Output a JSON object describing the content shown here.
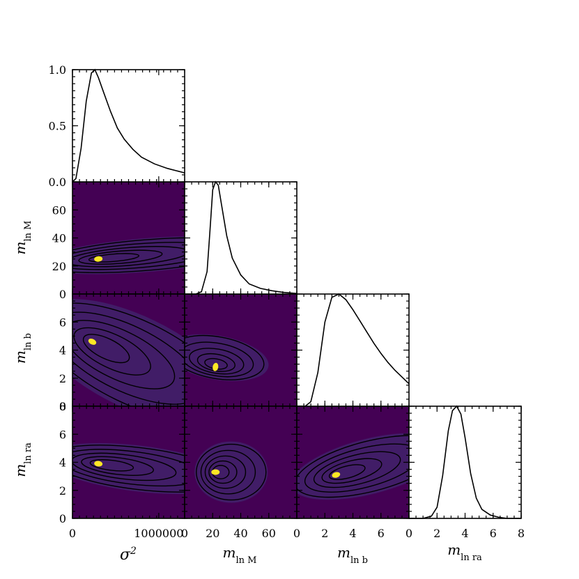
{
  "figure_type": "corner plot",
  "colors": {
    "background": "#440154",
    "ring1": "#3b528b",
    "ring2": "#21918c",
    "ring3": "#5ec962",
    "peak": "#fde725",
    "line": "#000000"
  },
  "chart_data": {
    "type": "corner",
    "colormap": "viridis",
    "params": [
      {
        "key": "sigma2",
        "label_base": "σ",
        "label_sup": "2",
        "label_sub": "",
        "range": [
          0,
          1300000
        ],
        "ticks": [
          0,
          1000000
        ],
        "tick_labels": [
          "0",
          "1000000"
        ]
      },
      {
        "key": "mlnM",
        "label_base": "m",
        "label_sup": "",
        "label_sub": "ln M",
        "range": [
          0,
          80
        ],
        "ticks": [
          0,
          20,
          40,
          60
        ],
        "tick_labels": [
          "0",
          "20",
          "40",
          "60"
        ]
      },
      {
        "key": "mlnb",
        "label_base": "m",
        "label_sup": "",
        "label_sub": "ln b",
        "range": [
          0,
          8
        ],
        "ticks": [
          0,
          2,
          4,
          6
        ],
        "tick_labels": [
          "0",
          "2",
          "4",
          "6"
        ]
      },
      {
        "key": "mlnra",
        "label_base": "m",
        "label_sup": "",
        "label_sub": "ln ra",
        "range": [
          0,
          8
        ],
        "ticks": [
          0,
          2,
          4,
          6,
          8
        ],
        "tick_labels": [
          "0",
          "2",
          "4",
          "6",
          "8"
        ]
      }
    ],
    "diag_y_ticks": [
      0,
      0.5,
      1.0
    ],
    "diag_y_tick_labels": [
      "0.0",
      "0.5",
      "1.0"
    ],
    "marginals": [
      {
        "param": "sigma2",
        "x": [
          0,
          40000,
          100000,
          160000,
          220000,
          260000,
          300000,
          360000,
          440000,
          520000,
          600000,
          700000,
          800000,
          950000,
          1100000,
          1300000
        ],
        "y": [
          0.0,
          0.03,
          0.3,
          0.72,
          0.97,
          1.0,
          0.93,
          0.8,
          0.63,
          0.48,
          0.38,
          0.29,
          0.22,
          0.16,
          0.12,
          0.08
        ]
      },
      {
        "param": "mlnM",
        "x": [
          0,
          8,
          12,
          16,
          18,
          20,
          22,
          24,
          26,
          30,
          34,
          40,
          46,
          54,
          62,
          70,
          80
        ],
        "y": [
          0.0,
          0.0,
          0.02,
          0.2,
          0.55,
          0.93,
          1.0,
          0.97,
          0.82,
          0.52,
          0.32,
          0.17,
          0.09,
          0.05,
          0.03,
          0.015,
          0.005
        ]
      },
      {
        "param": "mlnb",
        "x": [
          0,
          0.6,
          1.0,
          1.5,
          2.0,
          2.5,
          3.0,
          3.5,
          4.0,
          4.5,
          5.0,
          5.5,
          6.0,
          6.5,
          7.0,
          7.5,
          8.0
        ],
        "y": [
          0.0,
          0.0,
          0.04,
          0.3,
          0.75,
          0.97,
          1.0,
          0.95,
          0.86,
          0.76,
          0.66,
          0.56,
          0.47,
          0.39,
          0.32,
          0.26,
          0.2
        ]
      },
      {
        "param": "mlnra",
        "x": [
          0,
          1.0,
          1.6,
          2.0,
          2.4,
          2.8,
          3.1,
          3.4,
          3.7,
          4.0,
          4.4,
          4.8,
          5.2,
          5.8,
          6.4,
          7.0,
          8.0
        ],
        "y": [
          0.0,
          0.0,
          0.02,
          0.1,
          0.38,
          0.78,
          0.96,
          1.0,
          0.93,
          0.72,
          0.4,
          0.18,
          0.08,
          0.03,
          0.01,
          0.0,
          0.0
        ]
      }
    ],
    "joint": [
      {
        "x": "sigma2",
        "y": "mlnM",
        "peak": [
          300000,
          25
        ]
      },
      {
        "x": "sigma2",
        "y": "mlnb",
        "peak": [
          230000,
          4.6
        ]
      },
      {
        "x": "mlnM",
        "y": "mlnb",
        "peak": [
          22,
          2.8
        ]
      },
      {
        "x": "sigma2",
        "y": "mlnra",
        "peak": [
          300000,
          3.9
        ]
      },
      {
        "x": "mlnM",
        "y": "mlnra",
        "peak": [
          22,
          3.3
        ]
      },
      {
        "x": "mlnb",
        "y": "mlnra",
        "peak": [
          2.8,
          3.1
        ]
      }
    ]
  }
}
